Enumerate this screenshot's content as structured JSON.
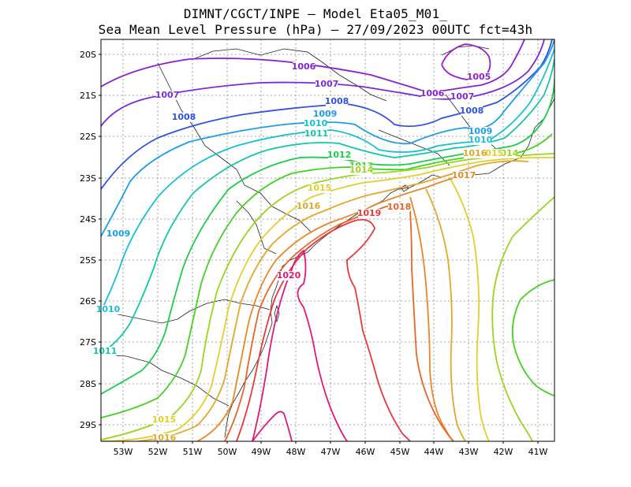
{
  "title_line1": "DIMNT/CGCT/INPE –  Model Eta05_M01_",
  "title_line2": "Sea Mean Level Pressure (hPa) – 27/09/2023 00UTC fct=43h",
  "lat_labels": [
    "20S",
    "21S",
    "22S",
    "23S",
    "24S",
    "25S",
    "26S",
    "27S",
    "28S",
    "29S"
  ],
  "lon_labels": [
    "53W",
    "52W",
    "51W",
    "50W",
    "49W",
    "48W",
    "47W",
    "46W",
    "45W",
    "44W",
    "43W",
    "42W",
    "41W"
  ],
  "colors": {
    "1005": "#9b1fd0",
    "1006": "#8a1fd0",
    "1007": "#7b2bd6",
    "1008": "#2f52e0",
    "1009": "#1d9ee6",
    "1010": "#16c0d6",
    "1011": "#14c8a6",
    "1012": "#1bcd4a",
    "1013": "#44d221",
    "1014": "#9ad51f",
    "1015": "#e3cf2c",
    "1016": "#e3a82a",
    "1017": "#e8872a",
    "1018": "#e9652a",
    "1019": "#e9373a",
    "1020": "#e0187a"
  },
  "isobar_labels": [
    {
      "text": "1005",
      "level": "1005"
    },
    {
      "text": "1006",
      "level": "1006"
    },
    {
      "text": "1006",
      "level": "1006"
    },
    {
      "text": "1007",
      "level": "1007"
    },
    {
      "text": "1007",
      "level": "1007"
    },
    {
      "text": "1007",
      "level": "1007"
    },
    {
      "text": "1008",
      "level": "1008"
    },
    {
      "text": "1008",
      "level": "1008"
    },
    {
      "text": "1008",
      "level": "1008"
    },
    {
      "text": "1009",
      "level": "1009"
    },
    {
      "text": "1009",
      "level": "1009"
    },
    {
      "text": "1009",
      "level": "1009"
    },
    {
      "text": "1010",
      "level": "1010"
    },
    {
      "text": "1010",
      "level": "1010"
    },
    {
      "text": "1010",
      "level": "1010"
    },
    {
      "text": "1011",
      "level": "1011"
    },
    {
      "text": "1011",
      "level": "1011"
    },
    {
      "text": "1012",
      "level": "1012"
    },
    {
      "text": "1013",
      "level": "1013"
    },
    {
      "text": "1014",
      "level": "1014"
    },
    {
      "text": "1014",
      "level": "1014"
    },
    {
      "text": "1015",
      "level": "1015"
    },
    {
      "text": "1015",
      "level": "1015"
    },
    {
      "text": "1015",
      "level": "1015"
    },
    {
      "text": "1016",
      "level": "1016"
    },
    {
      "text": "1016",
      "level": "1016"
    },
    {
      "text": "1016",
      "level": "1016"
    },
    {
      "text": "1017",
      "level": "1017"
    },
    {
      "text": "1018",
      "level": "1018"
    },
    {
      "text": "1019",
      "level": "1019"
    },
    {
      "text": "1020",
      "level": "1020"
    }
  ]
}
